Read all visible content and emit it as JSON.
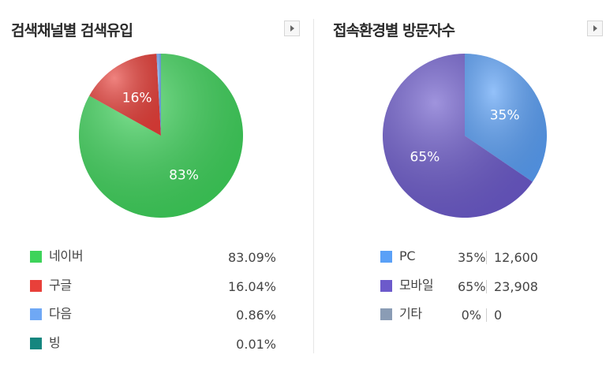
{
  "chart_data": [
    {
      "type": "pie",
      "title": "검색채널별 검색유입",
      "categories": [
        "네이버",
        "구글",
        "다음",
        "빙"
      ],
      "values": [
        83.09,
        16.04,
        0.86,
        0.01
      ],
      "value_labels": [
        "83.09%",
        "16.04%",
        "0.86%",
        "0.01%"
      ],
      "slice_labels": [
        "83%",
        "16%",
        "",
        ""
      ],
      "colors": [
        "#3dd35a",
        "#e8403a",
        "#6fa8f5",
        "#15867f"
      ],
      "legend": "bottom"
    },
    {
      "type": "pie",
      "title": "접속환경별 방문자수",
      "categories": [
        "PC",
        "모바일",
        "기타"
      ],
      "values": [
        12600,
        23908,
        0
      ],
      "percent_labels": [
        "35%",
        "65%",
        "0%"
      ],
      "count_labels": [
        "12,600",
        "23,908",
        "0"
      ],
      "slice_labels": [
        "35%",
        "65%",
        ""
      ],
      "colors": [
        "#5aa0f7",
        "#6c5acb",
        "#8a9cb5"
      ],
      "legend": "bottom"
    }
  ]
}
